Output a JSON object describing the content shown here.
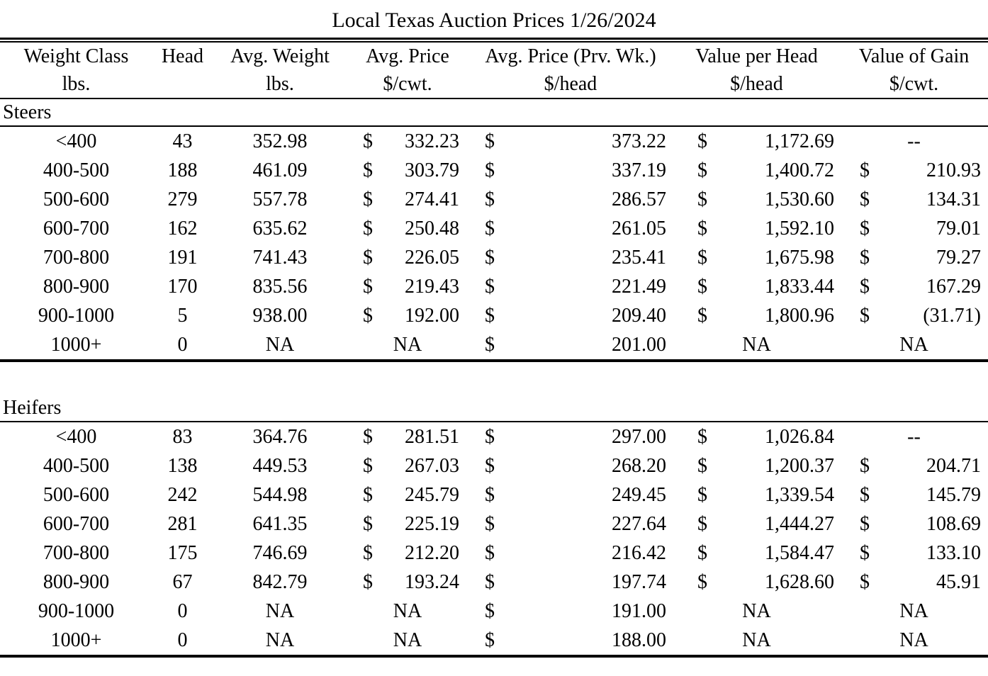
{
  "title": "Local Texas Auction Prices 1/26/2024",
  "currency_symbol": "$",
  "columns": [
    {
      "label": "Weight Class",
      "sub": "lbs."
    },
    {
      "label": "Head",
      "sub": ""
    },
    {
      "label": "Avg. Weight",
      "sub": "lbs."
    },
    {
      "label": "Avg. Price",
      "sub": "$/cwt."
    },
    {
      "label": "Avg. Price (Prv. Wk.)",
      "sub": "$/head"
    },
    {
      "label": "Value per Head",
      "sub": "$/head"
    },
    {
      "label": "Value of Gain",
      "sub": "$/cwt."
    }
  ],
  "sections": [
    {
      "label": "Steers",
      "rows": [
        {
          "weight_class": "<400",
          "head": "43",
          "avg_weight": "352.98",
          "avg_price": "332.23",
          "avg_price_prv_wk": "373.22",
          "value_per_head": "1,172.69",
          "value_of_gain": "--"
        },
        {
          "weight_class": "400-500",
          "head": "188",
          "avg_weight": "461.09",
          "avg_price": "303.79",
          "avg_price_prv_wk": "337.19",
          "value_per_head": "1,400.72",
          "value_of_gain": "210.93"
        },
        {
          "weight_class": "500-600",
          "head": "279",
          "avg_weight": "557.78",
          "avg_price": "274.41",
          "avg_price_prv_wk": "286.57",
          "value_per_head": "1,530.60",
          "value_of_gain": "134.31"
        },
        {
          "weight_class": "600-700",
          "head": "162",
          "avg_weight": "635.62",
          "avg_price": "250.48",
          "avg_price_prv_wk": "261.05",
          "value_per_head": "1,592.10",
          "value_of_gain": "79.01"
        },
        {
          "weight_class": "700-800",
          "head": "191",
          "avg_weight": "741.43",
          "avg_price": "226.05",
          "avg_price_prv_wk": "235.41",
          "value_per_head": "1,675.98",
          "value_of_gain": "79.27"
        },
        {
          "weight_class": "800-900",
          "head": "170",
          "avg_weight": "835.56",
          "avg_price": "219.43",
          "avg_price_prv_wk": "221.49",
          "value_per_head": "1,833.44",
          "value_of_gain": "167.29"
        },
        {
          "weight_class": "900-1000",
          "head": "5",
          "avg_weight": "938.00",
          "avg_price": "192.00",
          "avg_price_prv_wk": "209.40",
          "value_per_head": "1,800.96",
          "value_of_gain": "(31.71)"
        },
        {
          "weight_class": "1000+",
          "head": "0",
          "avg_weight": "NA",
          "avg_price": "NA",
          "avg_price_prv_wk": "201.00",
          "value_per_head": "NA",
          "value_of_gain": "NA"
        }
      ]
    },
    {
      "label": "Heifers",
      "rows": [
        {
          "weight_class": "<400",
          "head": "83",
          "avg_weight": "364.76",
          "avg_price": "281.51",
          "avg_price_prv_wk": "297.00",
          "value_per_head": "1,026.84",
          "value_of_gain": "--"
        },
        {
          "weight_class": "400-500",
          "head": "138",
          "avg_weight": "449.53",
          "avg_price": "267.03",
          "avg_price_prv_wk": "268.20",
          "value_per_head": "1,200.37",
          "value_of_gain": "204.71"
        },
        {
          "weight_class": "500-600",
          "head": "242",
          "avg_weight": "544.98",
          "avg_price": "245.79",
          "avg_price_prv_wk": "249.45",
          "value_per_head": "1,339.54",
          "value_of_gain": "145.79"
        },
        {
          "weight_class": "600-700",
          "head": "281",
          "avg_weight": "641.35",
          "avg_price": "225.19",
          "avg_price_prv_wk": "227.64",
          "value_per_head": "1,444.27",
          "value_of_gain": "108.69"
        },
        {
          "weight_class": "700-800",
          "head": "175",
          "avg_weight": "746.69",
          "avg_price": "212.20",
          "avg_price_prv_wk": "216.42",
          "value_per_head": "1,584.47",
          "value_of_gain": "133.10"
        },
        {
          "weight_class": "800-900",
          "head": "67",
          "avg_weight": "842.79",
          "avg_price": "193.24",
          "avg_price_prv_wk": "197.74",
          "value_per_head": "1,628.60",
          "value_of_gain": "45.91"
        },
        {
          "weight_class": "900-1000",
          "head": "0",
          "avg_weight": "NA",
          "avg_price": "NA",
          "avg_price_prv_wk": "191.00",
          "value_per_head": "NA",
          "value_of_gain": "NA"
        },
        {
          "weight_class": "1000+",
          "head": "0",
          "avg_weight": "NA",
          "avg_price": "NA",
          "avg_price_prv_wk": "188.00",
          "value_per_head": "NA",
          "value_of_gain": "NA"
        }
      ]
    }
  ]
}
